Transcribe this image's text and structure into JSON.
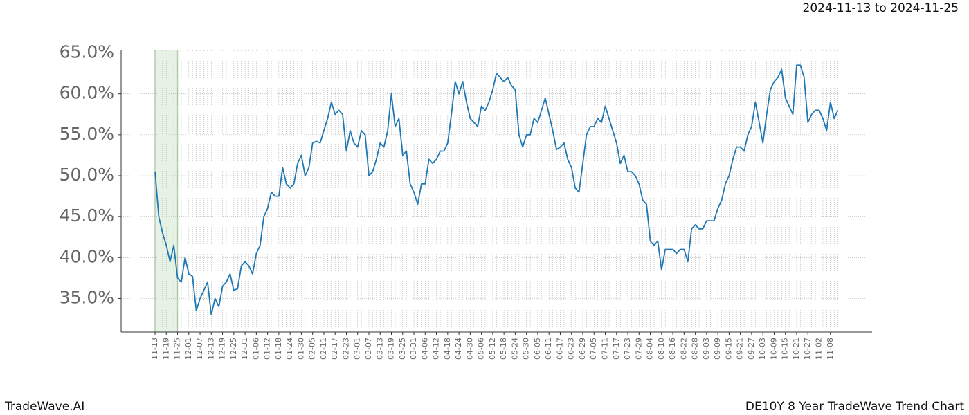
{
  "chart_data": {
    "type": "line",
    "title": "DE10Y 8 Year TradeWave Trend Chart",
    "subtitle": "2024-11-13 to 2024-11-25",
    "brand": "TradeWave.AI",
    "highlight": [
      "11-13",
      "11-25"
    ],
    "highlight_color": "#d6ead2",
    "color": "#1f77b4",
    "grid": true,
    "ylim": [
      30.9,
      65.3
    ],
    "yticks": [
      {
        "value": 35,
        "label": "35.0%"
      },
      {
        "value": 40,
        "label": "40.0%"
      },
      {
        "value": 45,
        "label": "45.0%"
      },
      {
        "value": 50,
        "label": "50.0%"
      },
      {
        "value": 55,
        "label": "55.0%"
      },
      {
        "value": 60,
        "label": "60.0%"
      },
      {
        "value": 65,
        "label": "65.0%"
      }
    ],
    "categories": [
      "11-13",
      null,
      null,
      "11-19",
      null,
      null,
      "11-25",
      null,
      null,
      "12-01",
      null,
      null,
      "12-07",
      null,
      null,
      "12-13",
      null,
      null,
      "12-19",
      null,
      null,
      "12-25",
      null,
      null,
      "12-31",
      null,
      null,
      "01-06",
      null,
      null,
      "01-12",
      null,
      null,
      "01-18",
      null,
      null,
      "01-24",
      null,
      null,
      "01-30",
      null,
      null,
      "02-05",
      null,
      null,
      "02-11",
      null,
      null,
      "02-17",
      null,
      null,
      "02-23",
      null,
      null,
      "03-01",
      null,
      null,
      "03-07",
      null,
      null,
      "03-13",
      null,
      null,
      "03-19",
      null,
      null,
      "03-25",
      null,
      null,
      "03-31",
      null,
      null,
      "04-06",
      null,
      null,
      "04-12",
      null,
      null,
      "04-18",
      null,
      null,
      "04-24",
      null,
      null,
      "04-30",
      null,
      null,
      "05-06",
      null,
      null,
      "05-12",
      null,
      null,
      "05-18",
      null,
      null,
      "05-24",
      null,
      null,
      "05-30",
      null,
      null,
      "06-05",
      null,
      null,
      "06-11",
      null,
      null,
      "06-17",
      null,
      null,
      "06-23",
      null,
      null,
      "06-29",
      null,
      null,
      "07-05",
      null,
      null,
      "07-11",
      null,
      null,
      "07-17",
      null,
      null,
      "07-23",
      null,
      null,
      "07-29",
      null,
      null,
      "08-04",
      null,
      null,
      "08-10",
      null,
      null,
      "08-16",
      null,
      null,
      "08-22",
      null,
      null,
      "08-28",
      null,
      null,
      "09-03",
      null,
      null,
      "09-09",
      null,
      null,
      "09-15",
      null,
      null,
      "09-21",
      null,
      null,
      "09-27",
      null,
      null,
      "10-03",
      null,
      null,
      "10-09",
      null,
      null,
      "10-15",
      null,
      null,
      "10-21",
      null,
      null,
      "10-27",
      null,
      null,
      "11-02",
      null,
      null,
      "11-08",
      null,
      null
    ],
    "values": [
      50.5,
      45,
      43,
      41.5,
      39.5,
      41.5,
      37.5,
      37,
      40,
      38,
      37.7,
      33.5,
      35,
      36,
      37,
      33,
      35,
      34,
      36.5,
      37,
      38,
      36,
      36.2,
      39,
      39.5,
      39,
      38,
      40.5,
      41.5,
      45,
      46,
      48,
      47.5,
      47.5,
      51,
      49,
      48.5,
      49,
      51.5,
      52.5,
      50,
      51,
      54,
      54.2,
      54,
      55.5,
      57,
      59,
      57.5,
      58,
      57.5,
      53,
      55.5,
      54,
      53.5,
      55.5,
      55,
      50,
      50.5,
      52,
      54,
      53.5,
      55.5,
      60,
      56,
      57,
      52.5,
      53,
      49,
      48,
      46.5,
      49,
      49,
      52,
      51.5,
      52,
      53,
      53,
      54,
      57.5,
      61.5,
      60,
      61.5,
      59,
      57,
      56.5,
      56,
      58.5,
      58,
      59,
      60.5,
      62.5,
      62,
      61.5,
      62,
      61,
      60.5,
      55,
      53.5,
      55,
      55,
      57,
      56.5,
      58,
      59.5,
      57.5,
      55.5,
      53.2,
      53.5,
      54,
      52,
      51,
      48.5,
      48,
      51.5,
      55,
      56,
      56,
      57,
      56.5,
      58.5,
      57,
      55.5,
      54,
      51.5,
      52.5,
      50.5,
      50.5,
      50,
      49,
      47,
      46.5,
      42,
      41.5,
      42,
      38.5,
      41,
      41,
      41,
      40.5,
      41,
      41,
      39.5,
      43.5,
      44,
      43.5,
      43.5,
      44.5,
      44.5,
      44.5,
      46,
      47,
      49,
      50,
      52,
      53.5,
      53.5,
      53,
      55,
      56,
      59,
      56.5,
      54,
      57.5,
      60.5,
      61.5,
      62,
      63,
      59.5,
      58.5,
      57.5,
      63.5,
      63.5,
      62,
      56.5,
      57.5,
      58,
      58,
      57,
      55.5,
      59,
      57,
      58
    ]
  }
}
